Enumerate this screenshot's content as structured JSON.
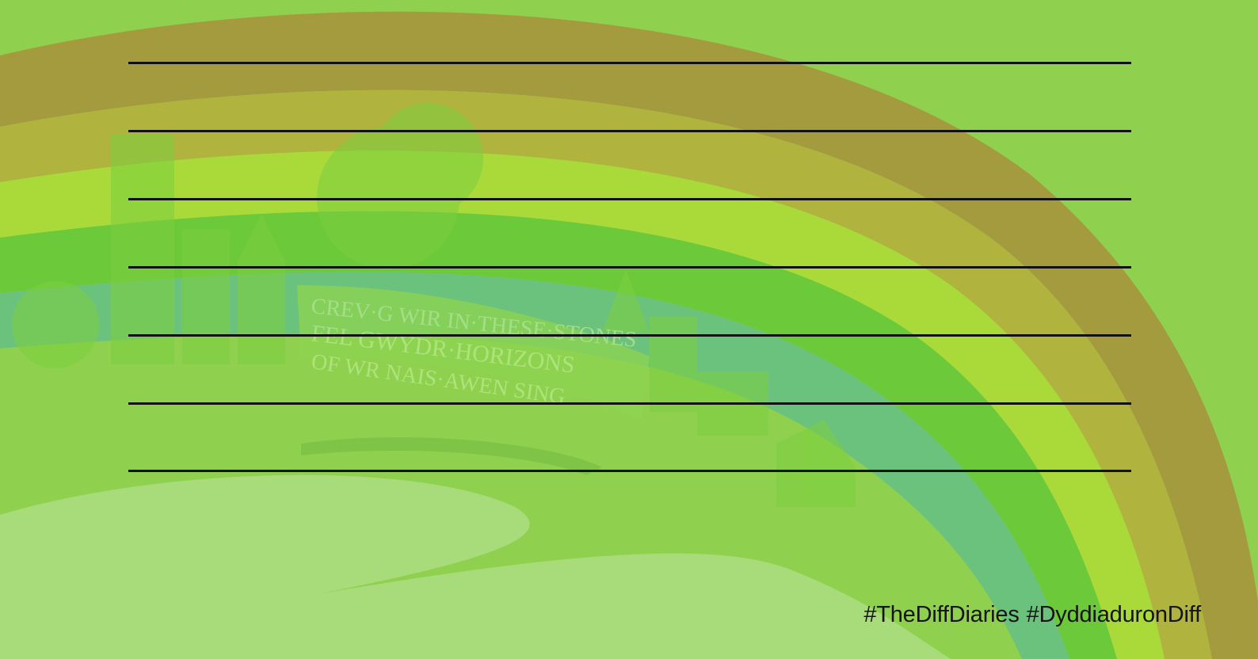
{
  "card": {
    "background_color": "#8fd14f",
    "rainbow_colors": [
      "#a39b3e",
      "#b0b43f",
      "#a9da3a",
      "#6cc93a",
      "#6bc27c"
    ],
    "hashtag_1": "#TheDiffDiaries",
    "hashtag_2": "#DyddiaduronDiff",
    "sign_text": [
      "CREV·G WIR IN·THESE·STONES",
      "FEL GWYDR·HORIZONS",
      "OF WR NAIS·AWEN SING"
    ],
    "writing_line_count": 7
  }
}
